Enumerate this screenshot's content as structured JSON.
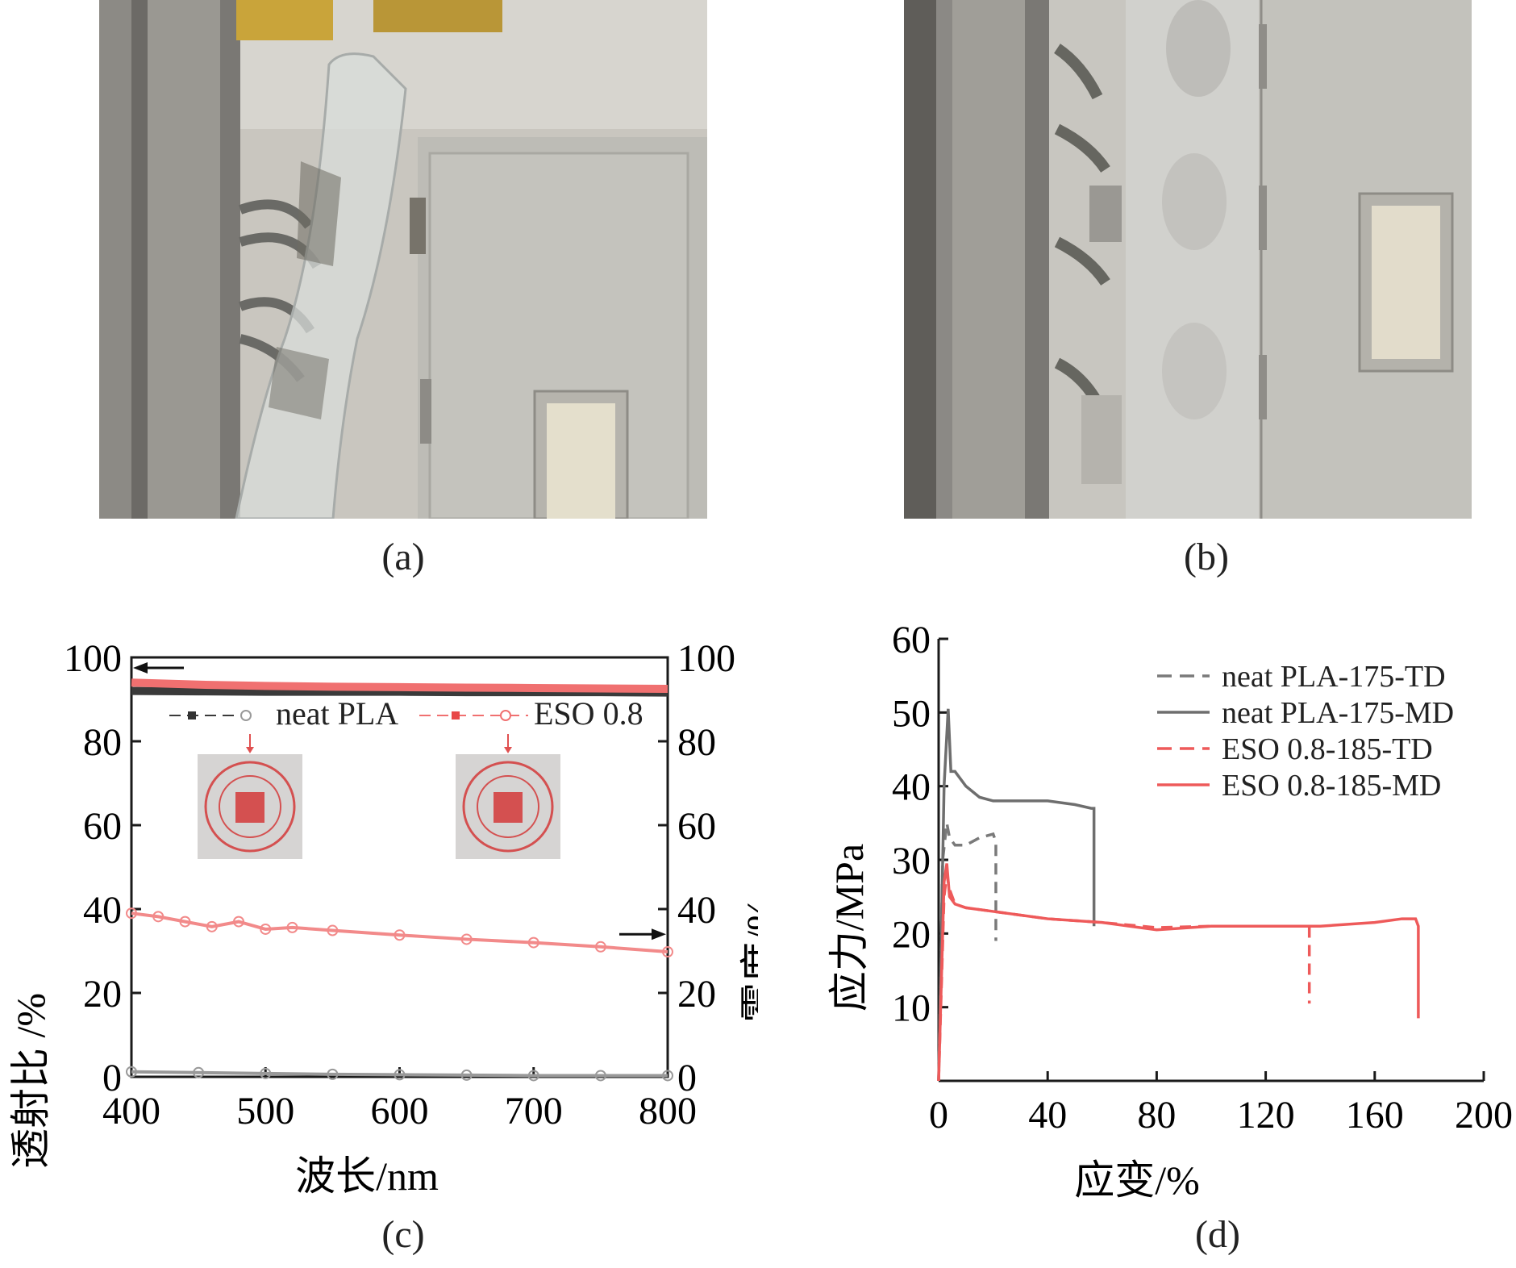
{
  "panels": {
    "a": {
      "caption": "(a)"
    },
    "b": {
      "caption": "(b)"
    },
    "c": {
      "caption": "(c)"
    },
    "d": {
      "caption": "(d)"
    }
  },
  "chart_data": [
    {
      "id": "c",
      "type": "line",
      "xlabel": "波长/nm",
      "ylabel_left": "透射比 /%",
      "ylabel_right": "雾度/%",
      "xlim": [
        400,
        800
      ],
      "ylim_left": [
        0,
        100
      ],
      "ylim_right": [
        0,
        100
      ],
      "xticks": [
        400,
        500,
        600,
        700,
        800
      ],
      "yticks_left": [
        0,
        20,
        40,
        60,
        80,
        100
      ],
      "yticks_right": [
        0,
        20,
        40,
        60,
        80,
        100
      ],
      "legend": {
        "placement": "top-center",
        "entries": [
          "neat PLA",
          "ESO 0.8"
        ]
      },
      "series": [
        {
          "name": "neat PLA",
          "axis": "left",
          "kind": "transmittance",
          "color": "#3a3a3a",
          "x": [
            400,
            450,
            500,
            550,
            600,
            650,
            700,
            750,
            800
          ],
          "values": [
            92,
            91.9,
            91.8,
            91.8,
            91.8,
            91.7,
            91.7,
            91.7,
            91.6
          ]
        },
        {
          "name": "ESO 0.8",
          "axis": "left",
          "kind": "transmittance",
          "color": "#f07070",
          "x": [
            400,
            450,
            500,
            550,
            600,
            650,
            700,
            750,
            800
          ],
          "values": [
            94,
            93.5,
            93.2,
            93,
            92.9,
            92.8,
            92.7,
            92.6,
            92.5
          ]
        },
        {
          "name": "neat PLA",
          "axis": "right",
          "kind": "haze",
          "color": "#999999",
          "x": [
            400,
            450,
            500,
            550,
            600,
            650,
            700,
            750,
            800
          ],
          "values": [
            1.2,
            1.0,
            0.8,
            0.6,
            0.5,
            0.4,
            0.3,
            0.3,
            0.3
          ]
        },
        {
          "name": "ESO 0.8",
          "axis": "right",
          "kind": "haze",
          "color": "#f28a8a",
          "x": [
            400,
            420,
            440,
            460,
            480,
            500,
            520,
            550,
            600,
            650,
            700,
            750,
            800
          ],
          "values": [
            39,
            38.2,
            37,
            35.8,
            37,
            35.2,
            35.6,
            34.9,
            33.8,
            32.8,
            32,
            31,
            29.8
          ]
        }
      ],
      "arrows": [
        {
          "direction": "left",
          "x": 400,
          "y": 97.5,
          "axis": "left"
        },
        {
          "direction": "right",
          "x": 800,
          "y": 34,
          "axis": "right"
        }
      ]
    },
    {
      "id": "d",
      "type": "line",
      "xlabel": "应变/%",
      "ylabel": "应力/MPa",
      "xlim": [
        0,
        200
      ],
      "ylim": [
        0,
        60
      ],
      "xticks": [
        0,
        40,
        80,
        120,
        160,
        200
      ],
      "yticks": [
        10,
        20,
        30,
        40,
        50,
        60
      ],
      "legend": {
        "placement": "top-right",
        "entries": [
          "neat PLA-175-TD",
          "neat PLA-175-MD",
          "ESO 0.8-185-TD",
          "ESO 0.8-185-MD"
        ]
      },
      "series": [
        {
          "name": "neat PLA-175-TD",
          "color": "#7a7a7a",
          "dash": true,
          "x": [
            0,
            1.5,
            3,
            4,
            6,
            10,
            15,
            20,
            21,
            21
          ],
          "y": [
            0,
            30,
            35,
            33,
            32,
            32,
            33,
            33.5,
            32.5,
            19
          ]
        },
        {
          "name": "neat PLA-175-MD",
          "color": "#6e6e6e",
          "dash": false,
          "x": [
            0,
            2,
            3.5,
            4.5,
            6,
            10,
            15,
            20,
            30,
            40,
            50,
            56,
            57,
            57
          ],
          "y": [
            0,
            40,
            50.5,
            42,
            42,
            40,
            38.5,
            38,
            38,
            38,
            37.5,
            37,
            37,
            21
          ]
        },
        {
          "name": "ESO 0.8-185-TD",
          "color": "#ee5a5a",
          "dash": true,
          "x": [
            0,
            2,
            3,
            4,
            6,
            10,
            20,
            40,
            60,
            80,
            100,
            120,
            135,
            136,
            136
          ],
          "y": [
            0,
            25,
            28,
            26,
            24,
            23.5,
            23,
            22,
            21.5,
            20.8,
            21,
            21,
            21,
            21,
            10.5
          ]
        },
        {
          "name": "ESO 0.8-185-MD",
          "color": "#ee5a5a",
          "dash": false,
          "x": [
            0,
            2,
            3,
            4,
            6,
            10,
            20,
            40,
            60,
            80,
            100,
            120,
            140,
            160,
            170,
            175,
            176,
            176
          ],
          "y": [
            0,
            27,
            29.5,
            25,
            24,
            23.5,
            23,
            22,
            21.5,
            20.5,
            21,
            21,
            21,
            21.5,
            22,
            22,
            21,
            8.5
          ]
        }
      ]
    }
  ]
}
